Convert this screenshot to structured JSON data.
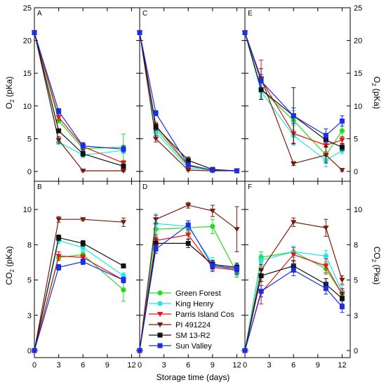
{
  "chart_data": {
    "type": "line",
    "xlabel": "Storage time (days)",
    "ylabel_o2_left": "O",
    "ylabel_o2_left_sub": "2",
    "ylabel_o2_left_unit": " (pKa)",
    "ylabel_o2_right": "O",
    "ylabel_o2_right_sub": "2",
    "ylabel_o2_right_unit": " (pKa)",
    "ylabel_co2_left": "CO",
    "ylabel_co2_left_sub": "2",
    "ylabel_co2_left_unit": " (pKa)",
    "ylabel_co2_right": "CO",
    "ylabel_co2_right_sub": "2",
    "ylabel_co2_right_unit": " (Pka)",
    "xlim": [
      0,
      13
    ],
    "xticks": [
      "0",
      "3",
      "6",
      "9",
      "12"
    ],
    "o2_ylim": [
      -1.5,
      25
    ],
    "o2_yticks": [
      "0",
      "5",
      "10",
      "15",
      "20",
      "25"
    ],
    "co2_ylim": [
      -0.5,
      12
    ],
    "co2_ytick_values": [
      0,
      2.5,
      5,
      7.5,
      10
    ],
    "co2_yticks": [
      "0",
      "3",
      "5",
      "8",
      "10"
    ],
    "series_styles": [
      {
        "name": "Green Forest",
        "color": "#22dd22",
        "marker": "circle"
      },
      {
        "name": "King Henry",
        "color": "#22e6e6",
        "marker": "circle"
      },
      {
        "name": "Parris Island Cos",
        "color": "#ee1111",
        "marker": "triangle-down"
      },
      {
        "name": "PI 491224",
        "color": "#7a1a0a",
        "marker": "triangle-down"
      },
      {
        "name": "SM 13-R2",
        "color": "#111111",
        "marker": "square"
      },
      {
        "name": "Sun Valley",
        "color": "#1a2ee6",
        "marker": "square"
      }
    ],
    "legend_position": "inside panel D, lower-left",
    "panels": [
      {
        "label": "A",
        "row": 0,
        "col": 0,
        "series": [
          {
            "name": "Green Forest",
            "x": [
              0,
              3,
              6,
              11
            ],
            "y": [
              21.2,
              7.8,
              3.5,
              3.7
            ],
            "err": [
              0,
              0.4,
              0.4,
              2.0
            ]
          },
          {
            "name": "King Henry",
            "x": [
              0,
              3,
              6,
              11
            ],
            "y": [
              21.2,
              4.5,
              2.5,
              3.2
            ],
            "err": [
              0,
              0.4,
              0.4,
              0.5
            ]
          },
          {
            "name": "Parris Island Cos",
            "x": [
              0,
              3,
              6,
              11
            ],
            "y": [
              21.2,
              8.3,
              3.8,
              1.3
            ],
            "err": [
              0,
              0.5,
              0.5,
              0.3
            ]
          },
          {
            "name": "PI 491224",
            "x": [
              0,
              3,
              6,
              11
            ],
            "y": [
              21.2,
              4.8,
              0.1,
              0.1
            ],
            "err": [
              0,
              0.5,
              0.1,
              0.1
            ]
          },
          {
            "name": "SM 13-R2",
            "x": [
              0,
              3,
              6,
              11
            ],
            "y": [
              21.2,
              6.2,
              2.7,
              0.8
            ],
            "err": [
              0,
              0.3,
              0.4,
              0.3
            ]
          },
          {
            "name": "Sun Valley",
            "x": [
              0,
              3,
              6,
              11
            ],
            "y": [
              21.2,
              9.2,
              3.9,
              3.4
            ],
            "err": [
              0,
              0.4,
              0.5,
              0.5
            ]
          }
        ]
      },
      {
        "label": "C",
        "row": 0,
        "col": 1,
        "series": [
          {
            "name": "Green Forest",
            "x": [
              0,
              2,
              6,
              9,
              12
            ],
            "y": [
              21.2,
              6.5,
              0.8,
              0.2,
              0.1
            ],
            "err": [
              0,
              0.5,
              0.3,
              0.1,
              0.1
            ]
          },
          {
            "name": "King Henry",
            "x": [
              0,
              2,
              6,
              9,
              12
            ],
            "y": [
              21.2,
              6.0,
              0.5,
              0.2,
              0.1
            ],
            "err": [
              0,
              0.5,
              0.3,
              0.1,
              0.1
            ]
          },
          {
            "name": "Parris Island Cos",
            "x": [
              0,
              2,
              6,
              9,
              12
            ],
            "y": [
              21.2,
              7.0,
              0.9,
              0.2,
              0.1
            ],
            "err": [
              0,
              0.5,
              0.3,
              0.1,
              0.1
            ]
          },
          {
            "name": "PI 491224",
            "x": [
              0,
              2,
              6,
              9,
              12
            ],
            "y": [
              21.2,
              5.0,
              0.2,
              0.1,
              0.1
            ],
            "err": [
              0,
              0.5,
              0.1,
              0.1,
              0.1
            ]
          },
          {
            "name": "SM 13-R2",
            "x": [
              0,
              2,
              6,
              9,
              12
            ],
            "y": [
              21.2,
              6.8,
              1.7,
              0.3,
              0.1
            ],
            "err": [
              0,
              0.5,
              0.5,
              0.1,
              0.1
            ]
          },
          {
            "name": "Sun Valley",
            "x": [
              0,
              2,
              6,
              9,
              12
            ],
            "y": [
              21.2,
              8.9,
              1.0,
              0.2,
              0.1
            ],
            "err": [
              0,
              0.4,
              0.3,
              0.1,
              0.1
            ]
          }
        ]
      },
      {
        "label": "E",
        "row": 0,
        "col": 2,
        "series": [
          {
            "name": "Green Forest",
            "x": [
              0,
              2,
              6,
              10,
              12
            ],
            "y": [
              21.2,
              12.5,
              7.8,
              2.5,
              6.2
            ],
            "err": [
              0,
              1.0,
              1.5,
              1.2,
              1.0
            ]
          },
          {
            "name": "King Henry",
            "x": [
              0,
              2,
              6,
              10,
              12
            ],
            "y": [
              21.2,
              12.2,
              5.5,
              1.7,
              3.2
            ],
            "err": [
              0,
              1.0,
              1.5,
              1.0,
              0.5
            ]
          },
          {
            "name": "Parris Island Cos",
            "x": [
              0,
              2,
              6,
              10,
              12
            ],
            "y": [
              21.2,
              14.0,
              5.8,
              4.0,
              4.8
            ],
            "err": [
              0,
              3.0,
              1.5,
              1.0,
              0.5
            ]
          },
          {
            "name": "PI 491224",
            "x": [
              0,
              2,
              6,
              10,
              12
            ],
            "y": [
              21.2,
              14.2,
              1.2,
              2.5,
              0.2
            ],
            "err": [
              0,
              1.5,
              0.3,
              1.2,
              0.2
            ]
          },
          {
            "name": "SM 13-R2",
            "x": [
              0,
              2,
              6,
              10,
              12
            ],
            "y": [
              21.2,
              12.5,
              8.5,
              4.8,
              3.7
            ],
            "err": [
              0,
              1.5,
              4.3,
              1.0,
              0.5
            ]
          },
          {
            "name": "Sun Valley",
            "x": [
              0,
              2,
              6,
              10,
              12
            ],
            "y": [
              21.2,
              13.8,
              8.5,
              5.5,
              7.7
            ],
            "err": [
              0,
              1.0,
              1.2,
              1.0,
              0.8
            ]
          }
        ]
      },
      {
        "label": "B",
        "row": 1,
        "col": 0,
        "series": [
          {
            "name": "Green Forest",
            "x": [
              0,
              3,
              6,
              11
            ],
            "y": [
              0,
              6.6,
              6.8,
              4.3
            ],
            "err": [
              0,
              0.2,
              0.2,
              0.8
            ]
          },
          {
            "name": "King Henry",
            "x": [
              0,
              3,
              6,
              11
            ],
            "y": [
              0,
              7.8,
              7.3,
              5.3
            ],
            "err": [
              0,
              0.2,
              0.2,
              0.2
            ]
          },
          {
            "name": "Parris Island Cos",
            "x": [
              0,
              3,
              6,
              11
            ],
            "y": [
              0,
              6.7,
              6.6,
              5.0
            ],
            "err": [
              0,
              0.3,
              0.2,
              0.2
            ]
          },
          {
            "name": "PI 491224",
            "x": [
              0,
              3,
              6,
              11
            ],
            "y": [
              0,
              9.3,
              9.3,
              9.1
            ],
            "err": [
              0,
              0.2,
              0.1,
              0.3
            ]
          },
          {
            "name": "SM 13-R2",
            "x": [
              0,
              3,
              6,
              11
            ],
            "y": [
              0,
              8.0,
              7.6,
              6.0
            ],
            "err": [
              0,
              0.2,
              0.2,
              0.1
            ]
          },
          {
            "name": "Sun Valley",
            "x": [
              0,
              3,
              6,
              11
            ],
            "y": [
              0,
              5.9,
              6.3,
              5.0
            ],
            "err": [
              0,
              0.2,
              0.2,
              0.2
            ]
          }
        ]
      },
      {
        "label": "D",
        "row": 1,
        "col": 1,
        "series": [
          {
            "name": "Green Forest",
            "x": [
              0,
              2,
              6,
              9,
              12
            ],
            "y": [
              0,
              8.6,
              8.7,
              8.8,
              5.5
            ],
            "err": [
              0,
              0.5,
              0.3,
              0.5,
              0.3
            ]
          },
          {
            "name": "King Henry",
            "x": [
              0,
              2,
              6,
              9,
              12
            ],
            "y": [
              0,
              9.0,
              8.8,
              6.2,
              5.6
            ],
            "err": [
              0,
              0.7,
              0.4,
              0.4,
              0.3
            ]
          },
          {
            "name": "Parris Island Cos",
            "x": [
              0,
              2,
              6,
              9,
              12
            ],
            "y": [
              0,
              7.8,
              8.2,
              5.9,
              5.7
            ],
            "err": [
              0,
              0.4,
              0.3,
              0.3,
              0.3
            ]
          },
          {
            "name": "PI 491224",
            "x": [
              0,
              2,
              6,
              9,
              12
            ],
            "y": [
              0,
              9.3,
              10.3,
              9.9,
              8.6
            ],
            "err": [
              0,
              0.3,
              0.2,
              0.4,
              1.6
            ]
          },
          {
            "name": "SM 13-R2",
            "x": [
              0,
              2,
              6,
              9,
              12
            ],
            "y": [
              0,
              7.6,
              7.6,
              6.1,
              5.9
            ],
            "err": [
              0,
              0.4,
              0.3,
              0.3,
              0.3
            ]
          },
          {
            "name": "Sun Valley",
            "x": [
              0,
              2,
              6,
              9,
              12
            ],
            "y": [
              0,
              7.2,
              8.9,
              6.0,
              5.8
            ],
            "err": [
              0,
              0.3,
              0.3,
              0.3,
              0.3
            ]
          }
        ]
      },
      {
        "label": "F",
        "row": 1,
        "col": 2,
        "series": [
          {
            "name": "Green Forest",
            "x": [
              0,
              2,
              6,
              10,
              12
            ],
            "y": [
              0,
              6.6,
              7.0,
              5.8,
              4.0
            ],
            "err": [
              0,
              0.4,
              0.4,
              0.4,
              0.4
            ]
          },
          {
            "name": "King Henry",
            "x": [
              0,
              2,
              6,
              10,
              12
            ],
            "y": [
              0,
              6.4,
              7.0,
              6.7,
              4.2
            ],
            "err": [
              0,
              0.4,
              0.4,
              0.4,
              0.4
            ]
          },
          {
            "name": "Parris Island Cos",
            "x": [
              0,
              2,
              6,
              10,
              12
            ],
            "y": [
              0,
              4.1,
              6.8,
              6.0,
              4.0
            ],
            "err": [
              0,
              0.8,
              0.5,
              0.5,
              0.4
            ]
          },
          {
            "name": "PI 491224",
            "x": [
              0,
              2,
              6,
              10,
              12
            ],
            "y": [
              0,
              5.7,
              9.1,
              8.7,
              5.0
            ],
            "err": [
              0,
              0.4,
              0.3,
              0.6,
              0.3
            ]
          },
          {
            "name": "SM 13-R2",
            "x": [
              0,
              2,
              6,
              10,
              12
            ],
            "y": [
              0,
              5.3,
              6.0,
              4.7,
              3.7
            ],
            "err": [
              0,
              0.4,
              0.4,
              0.4,
              0.4
            ]
          },
          {
            "name": "Sun Valley",
            "x": [
              0,
              2,
              6,
              10,
              12
            ],
            "y": [
              0,
              4.2,
              5.7,
              4.4,
              3.1
            ],
            "err": [
              0,
              0.4,
              0.4,
              0.4,
              0.4
            ]
          }
        ]
      }
    ]
  }
}
